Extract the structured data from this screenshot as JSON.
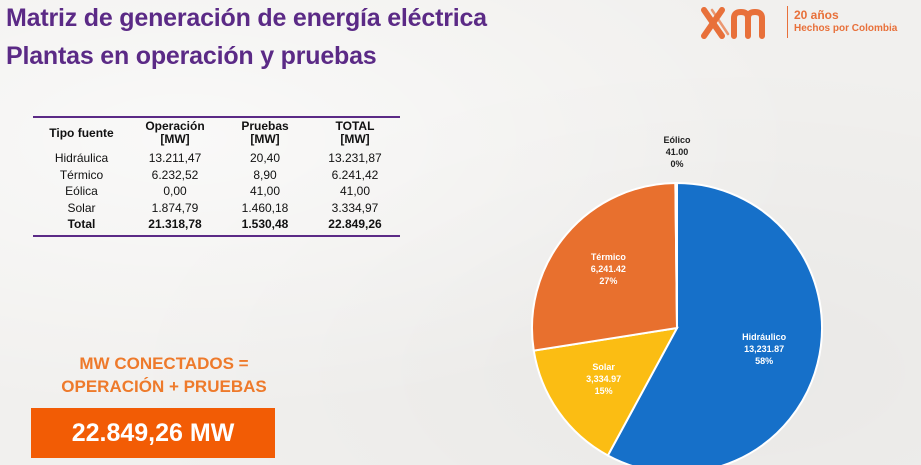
{
  "header": {
    "title_line1": "Matriz de generación de energía eléctrica",
    "title_line2": "Plantas en operación y pruebas"
  },
  "logo": {
    "mark": "xm",
    "years": "20 años",
    "tagline": "Hechos por Colombia",
    "color": "#e8703a"
  },
  "table": {
    "headers": [
      "Tipo fuente",
      "Operación [MW]",
      "Pruebas [MW]",
      "TOTAL [MW]"
    ],
    "header_lines": [
      [
        "Tipo fuente"
      ],
      [
        "Operación",
        "[MW]"
      ],
      [
        "Pruebas",
        "[MW]"
      ],
      [
        "TOTAL",
        "[MW]"
      ]
    ],
    "rows": [
      [
        "Hidráulica",
        "13.211,47",
        "20,40",
        "13.231,87"
      ],
      [
        "Térmico",
        "6.232,52",
        "8,90",
        "6.241,42"
      ],
      [
        "Eólica",
        "0,00",
        "41,00",
        "41,00"
      ],
      [
        "Solar",
        "1.874,79",
        "1.460,18",
        "3.334,97"
      ]
    ],
    "total": [
      "Total",
      "21.318,78",
      "1.530,48",
      "22.849,26"
    ]
  },
  "summary": {
    "formula_line1": "MW CONECTADOS =",
    "formula_line2": "OPERACIÓN + PRUEBAS",
    "total_label": "22.849,26 MW",
    "accent": "#f25c05"
  },
  "chart_data": {
    "type": "pie",
    "title": "",
    "slices": [
      {
        "label": "Hidráulico",
        "value": 13231.87,
        "value_label": "13,231.87",
        "pct_label": "58%",
        "color": "#1670c9"
      },
      {
        "label": "Solar",
        "value": 3334.97,
        "value_label": "3,334.97",
        "pct_label": "15%",
        "color": "#fbbd13"
      },
      {
        "label": "Térmico",
        "value": 6241.42,
        "value_label": "6,241.42",
        "pct_label": "27%",
        "color": "#e8702e"
      },
      {
        "label": "Eólico",
        "value": 41.0,
        "value_label": "41.00",
        "pct_label": "0%",
        "color": "#9a9a9a"
      }
    ],
    "start": "top, clockwise"
  }
}
